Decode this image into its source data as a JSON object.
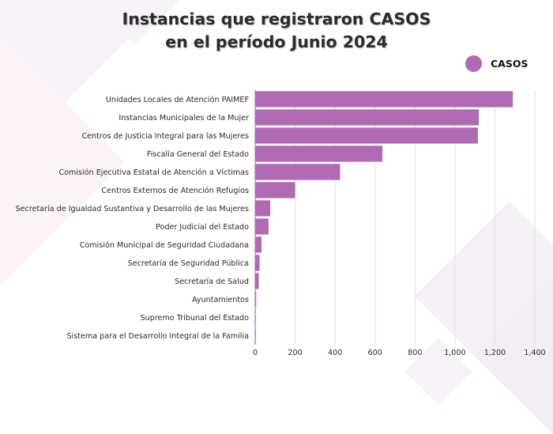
{
  "chart_data": {
    "type": "bar",
    "orientation": "horizontal",
    "title": "Instancias que registraron CASOS en el período Junio 2024",
    "title_lines": [
      "Instancias que registraron CASOS",
      "en el período Junio 2024"
    ],
    "xlabel": "",
    "ylabel": "",
    "xlim": [
      0,
      1400
    ],
    "xticks": [
      0,
      200,
      400,
      600,
      800,
      1000,
      1200,
      1400
    ],
    "xtick_labels": [
      "0",
      "200",
      "400",
      "600",
      "800",
      "1,000",
      "1,200",
      "1,400"
    ],
    "grid": true,
    "legend_position": "top-right",
    "categories": [
      "Unidades Locales de Atención PAIMEF",
      "Instancias Municipales de la Mujer",
      "Centros de Justicia Integral para las Mujeres",
      "Fiscalía General del Estado",
      "Comisión Ejecutiva Estatal de Atención a Víctimas",
      "Centros Externos de Atención Refugios",
      "Secretaría de Igualdad Sustantiva y Desarrollo de las Mujeres",
      "Poder Judicial del Estado",
      "Comisión Municipal de Seguridad Ciudadana",
      "Secretaría de Seguridad Pública",
      "Secretaría de Salud",
      "Ayuntamientos",
      "Supremo Tribunal del Estado",
      "Sistema para el Desarrollo Integral de la Familia"
    ],
    "series": [
      {
        "name": "CASOS",
        "color": "#b06ab3",
        "values": [
          1290,
          1120,
          1115,
          637,
          425,
          200,
          75,
          67,
          32,
          22,
          18,
          5,
          2,
          1
        ]
      }
    ]
  },
  "colors": {
    "bar": "#b06ab3",
    "grid": "#dedede",
    "text": "#2a2a2a",
    "bg_shape": "#f4eef5"
  }
}
